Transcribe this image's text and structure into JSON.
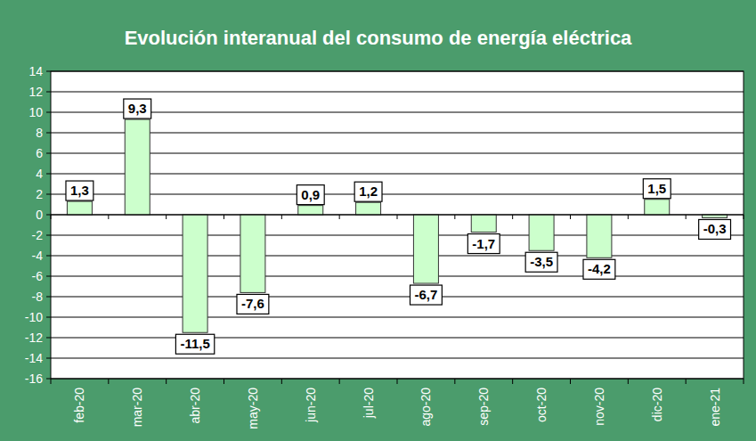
{
  "chart_data": {
    "type": "bar",
    "title": "Evolución interanual del consumo  de energía eléctrica",
    "categories": [
      "feb-20",
      "mar-20",
      "abr-20",
      "may-20",
      "jun-20",
      "jul-20",
      "ago-20",
      "sep-20",
      "oct-20",
      "nov-20",
      "dic-20",
      "ene-21"
    ],
    "values": [
      1.3,
      9.3,
      -11.5,
      -7.6,
      0.9,
      1.2,
      -6.7,
      -1.7,
      -3.5,
      -4.2,
      1.5,
      -0.3
    ],
    "value_labels": [
      "1,3",
      "9,3",
      "-11,5",
      "-7,6",
      "0,9",
      "1,2",
      "-6,7",
      "-1,7",
      "-3,5",
      "-4,2",
      "1,5",
      "-0,3"
    ],
    "color": "#ccffcc",
    "ylim": [
      -16,
      14
    ],
    "yticks": [
      -16,
      -14,
      -12,
      -10,
      -8,
      -6,
      -4,
      -2,
      0,
      2,
      4,
      6,
      8,
      10,
      12,
      14
    ],
    "grid": true,
    "data_labels": true
  }
}
